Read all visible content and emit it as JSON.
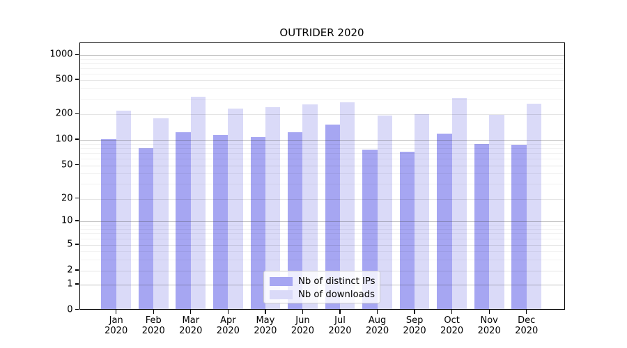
{
  "chart_data": {
    "type": "bar",
    "title": "OUTRIDER 2020",
    "scale": "symlog",
    "grid": true,
    "legend_position": "lower-center",
    "categories": [
      "Jan",
      "Feb",
      "Mar",
      "Apr",
      "May",
      "Jun",
      "Jul",
      "Aug",
      "Sep",
      "Oct",
      "Nov",
      "Dec"
    ],
    "category_year": "2020",
    "y_ticks": [
      0,
      1,
      2,
      5,
      10,
      20,
      50,
      100,
      200,
      500,
      1000
    ],
    "ylim": [
      0,
      1300
    ],
    "series": [
      {
        "name": "Nb of distinct IPs",
        "color": "#a6a6f2",
        "values": [
          102,
          79,
          122,
          115,
          107,
          122,
          152,
          77,
          72,
          119,
          89,
          88
        ]
      },
      {
        "name": "Nb of downloads",
        "color": "#dadaf8",
        "values": [
          221,
          181,
          322,
          235,
          240,
          260,
          276,
          194,
          202,
          307,
          196,
          264
        ]
      }
    ]
  }
}
